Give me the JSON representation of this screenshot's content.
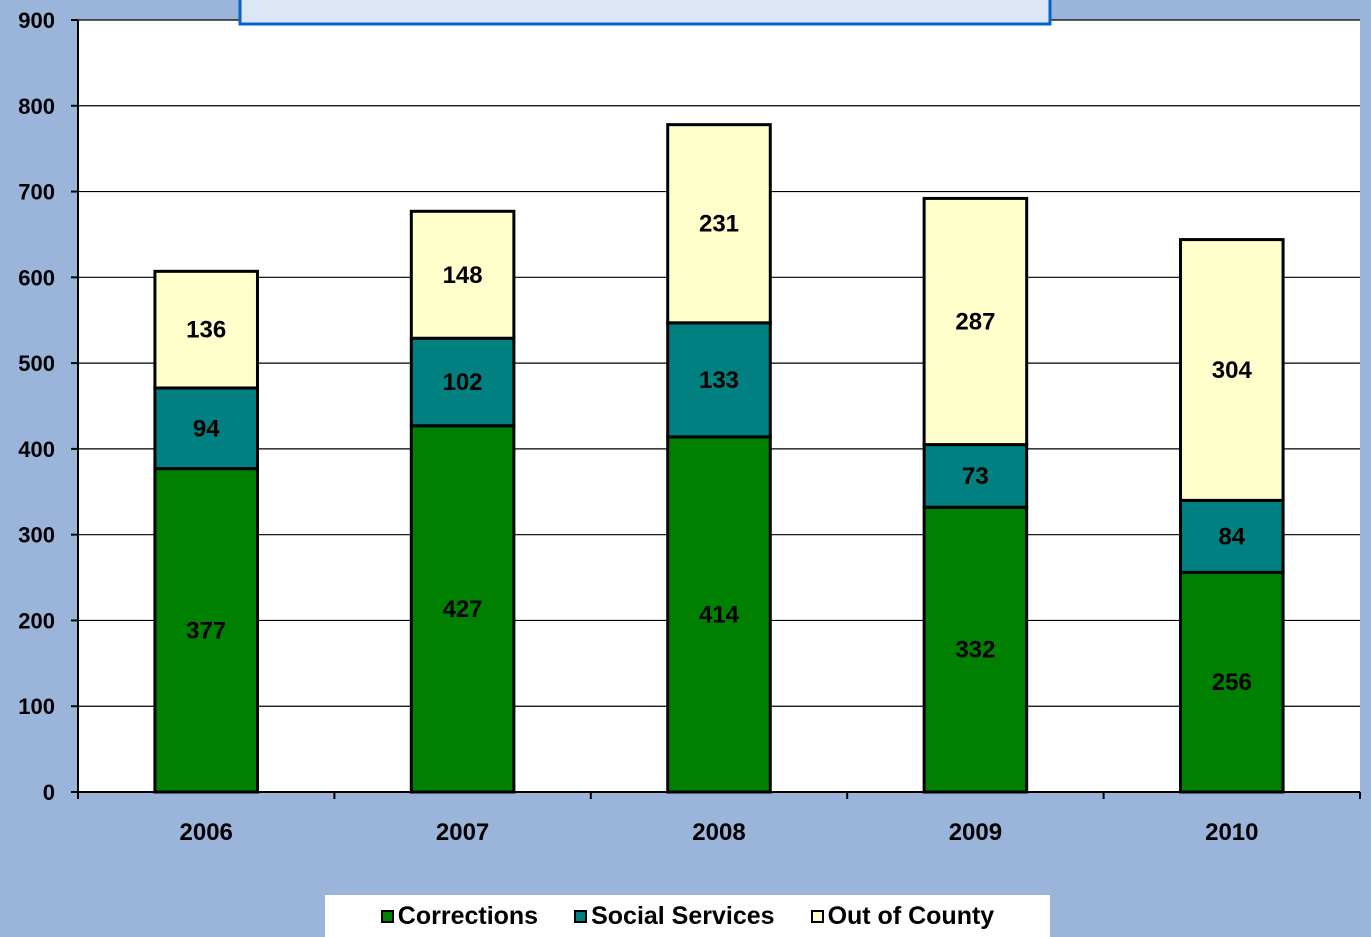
{
  "chart_data": {
    "type": "bar",
    "stacked": true,
    "categories": [
      "2006",
      "2007",
      "2008",
      "2009",
      "2010"
    ],
    "series": [
      {
        "name": "Corrections",
        "values": [
          377,
          427,
          414,
          332,
          256
        ],
        "color": "#008000"
      },
      {
        "name": "Social Services",
        "values": [
          94,
          102,
          133,
          73,
          84
        ],
        "color": "#008080"
      },
      {
        "name": "Out of County",
        "values": [
          136,
          148,
          231,
          287,
          304
        ],
        "color": "#ffffcc"
      }
    ],
    "ylim": [
      0,
      900
    ],
    "yticks": [
      0,
      100,
      200,
      300,
      400,
      500,
      600,
      700,
      800,
      900
    ],
    "grid": true,
    "legend_position": "bottom",
    "plot_background": "#ffffff",
    "page_background": "#9ab5d9",
    "title_box_color": "#dce6f4",
    "title_box_border": "#0066cc"
  },
  "legend": {
    "items": [
      "Corrections",
      "Social Services",
      "Out of County"
    ]
  }
}
